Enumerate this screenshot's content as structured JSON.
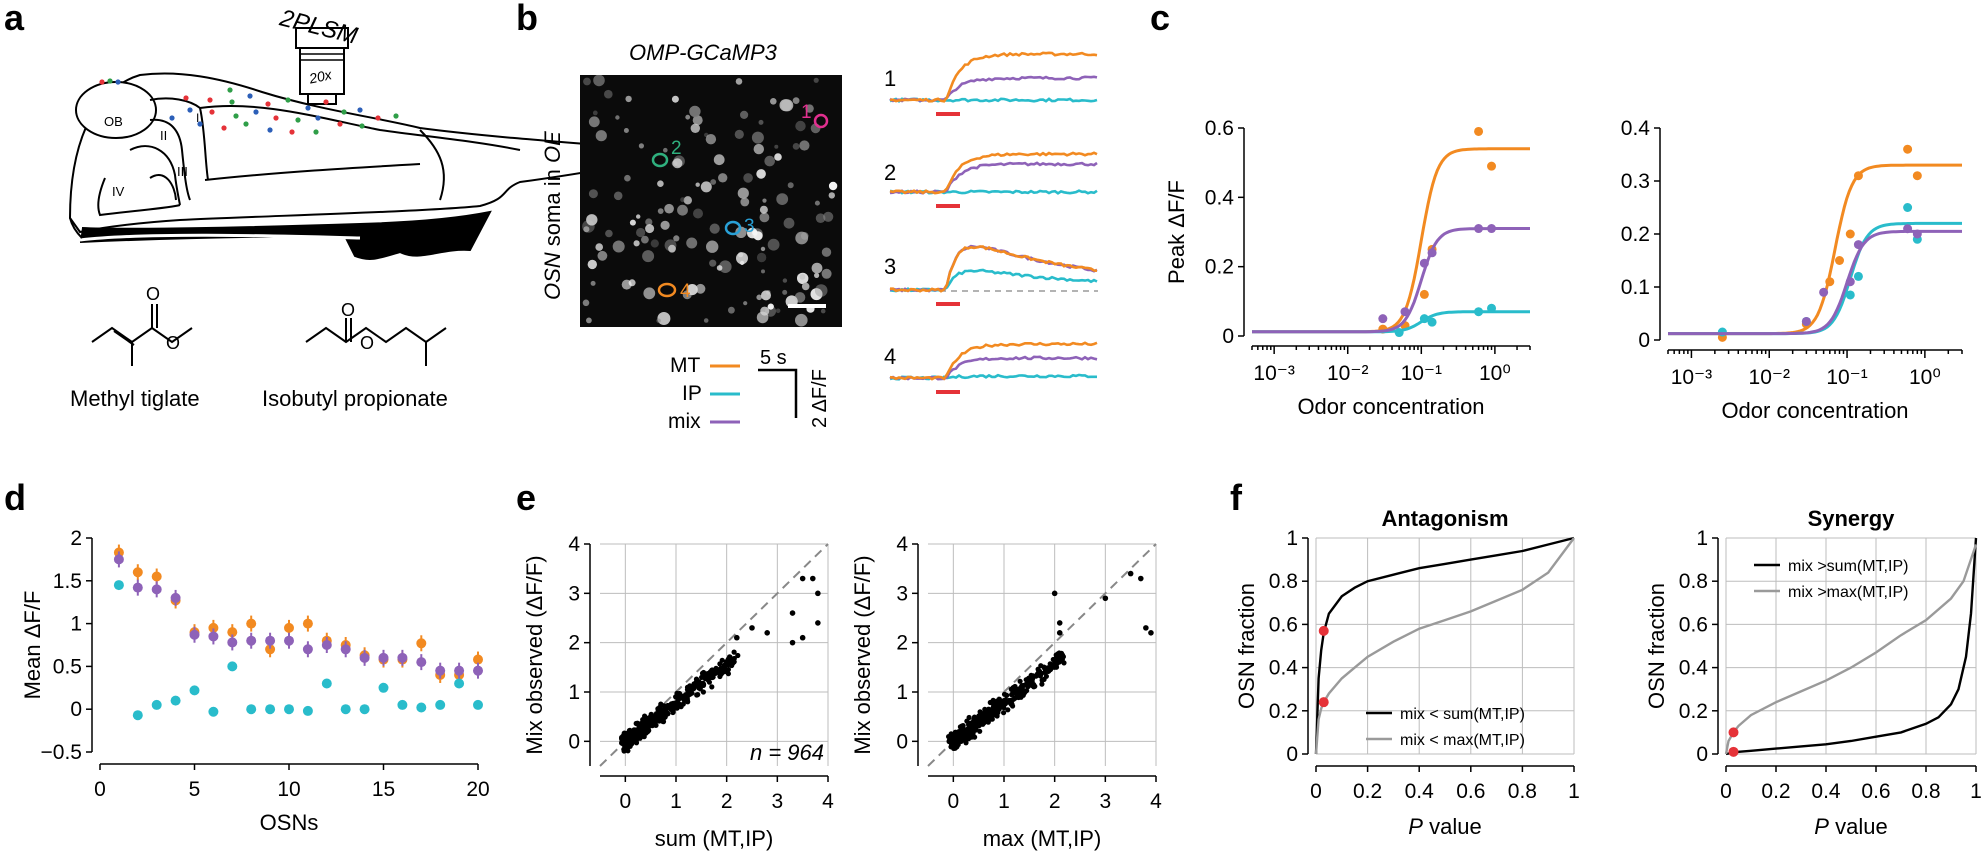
{
  "panel_labels": [
    "a",
    "b",
    "c",
    "d",
    "e",
    "f"
  ],
  "colors": {
    "MT": "#f28a21",
    "IP": "#29bccb",
    "mix": "#8e62b8",
    "marker": "#e53238"
  },
  "panel_a": {
    "microscope": "2PLSM",
    "objective": "20x",
    "regions": [
      "OB",
      "I",
      "II",
      "III",
      "IV"
    ],
    "chemicals": [
      "Methyl tiglate",
      "Isobutyl propionate"
    ]
  },
  "panel_b": {
    "image_title": "OMP-GCaMP3",
    "image_ylabel_prefix": "OSN",
    "image_ylabel_mid": " soma in ",
    "image_ylabel_suffix": "OE",
    "cells": [
      "1",
      "2",
      "3",
      "4"
    ],
    "legend": [
      "MT",
      "IP",
      "mix"
    ],
    "scale_time": "5 s",
    "scale_amp": "2 ΔF/F",
    "trace_labels": [
      "1",
      "2",
      "3",
      "4"
    ]
  },
  "chart_data": [
    {
      "type": "scatter",
      "panel": "c-left",
      "ylabel": "Peak ΔF/F",
      "xlabel": "Odor concentration",
      "xscale": "log",
      "xlim": [
        0.0005,
        3
      ],
      "ylim": [
        0,
        0.6
      ],
      "yticks": [
        "0",
        "0.2",
        "0.4",
        "0.6"
      ],
      "xticks": [
        "10⁻³",
        "10⁻²",
        "10⁻¹",
        "10⁰"
      ],
      "series": [
        {
          "name": "MT",
          "x": [
            0.03,
            0.06,
            0.11,
            0.14,
            0.6,
            0.9
          ],
          "y": [
            0.02,
            0.03,
            0.12,
            0.25,
            0.59,
            0.49
          ],
          "fit_top": 0.54,
          "fit_ec50": 0.1
        },
        {
          "name": "IP",
          "x": [
            0.05,
            0.11,
            0.14,
            0.6,
            0.9
          ],
          "y": [
            0.01,
            0.05,
            0.04,
            0.07,
            0.08
          ],
          "fit_top": 0.07,
          "fit_ec50": 0.1
        },
        {
          "name": "mix",
          "x": [
            0.03,
            0.06,
            0.11,
            0.14,
            0.6,
            0.9
          ],
          "y": [
            0.05,
            0.07,
            0.21,
            0.24,
            0.31,
            0.31
          ],
          "fit_top": 0.31,
          "fit_ec50": 0.1
        }
      ]
    },
    {
      "type": "scatter",
      "panel": "c-right",
      "ylabel": "",
      "xlabel": "Odor concentration",
      "xscale": "log",
      "xlim": [
        0.0005,
        3
      ],
      "ylim": [
        0,
        0.4
      ],
      "yticks": [
        "0",
        "0.1",
        "0.2",
        "0.3",
        "0.4"
      ],
      "xticks": [
        "10⁻³",
        "10⁻²",
        "10⁻¹",
        "10⁰"
      ],
      "series": [
        {
          "name": "MT",
          "x": [
            0.0025,
            0.03,
            0.06,
            0.08,
            0.11,
            0.14,
            0.6,
            0.8
          ],
          "y": [
            0.005,
            0.03,
            0.11,
            0.15,
            0.2,
            0.31,
            0.36,
            0.31
          ],
          "fit_top": 0.33,
          "fit_ec50": 0.07
        },
        {
          "name": "IP",
          "x": [
            0.0025,
            0.03,
            0.11,
            0.14,
            0.6,
            0.8
          ],
          "y": [
            0.015,
            0.035,
            0.085,
            0.12,
            0.25,
            0.19
          ],
          "fit_top": 0.22,
          "fit_ec50": 0.11
        },
        {
          "name": "mix",
          "x": [
            0.03,
            0.05,
            0.11,
            0.14,
            0.6,
            0.8
          ],
          "y": [
            0.035,
            0.09,
            0.11,
            0.18,
            0.21,
            0.2
          ],
          "fit_top": 0.205,
          "fit_ec50": 0.1
        }
      ]
    },
    {
      "type": "scatter",
      "panel": "d",
      "ylabel": "Mean ΔF/F",
      "xlabel": "OSNs",
      "xlim": [
        0,
        20
      ],
      "ylim": [
        -0.5,
        2
      ],
      "yticks": [
        "−0.5",
        "0",
        "0.5",
        "1",
        "1.5",
        "2"
      ],
      "xticks": [
        "0",
        "5",
        "10",
        "15",
        "20"
      ],
      "x": [
        1,
        2,
        3,
        4,
        5,
        6,
        7,
        8,
        9,
        10,
        11,
        12,
        13,
        14,
        15,
        16,
        17,
        18,
        19,
        20
      ],
      "series": [
        {
          "name": "MT",
          "values": [
            1.83,
            1.6,
            1.55,
            1.27,
            0.9,
            0.95,
            0.9,
            1.0,
            0.7,
            0.95,
            1.0,
            0.8,
            0.75,
            0.63,
            0.58,
            0.58,
            0.77,
            0.4,
            0.4,
            0.58
          ]
        },
        {
          "name": "IP",
          "values": [
            1.45,
            -0.07,
            0.05,
            0.1,
            0.22,
            -0.03,
            0.5,
            0.0,
            0.0,
            0.0,
            -0.02,
            0.3,
            0.0,
            0.0,
            0.25,
            0.05,
            0.02,
            0.05,
            0.3,
            0.05
          ]
        },
        {
          "name": "mix",
          "values": [
            1.75,
            1.42,
            1.4,
            1.3,
            0.87,
            0.85,
            0.78,
            0.8,
            0.8,
            0.8,
            0.7,
            0.75,
            0.7,
            0.6,
            0.6,
            0.6,
            0.55,
            0.45,
            0.45,
            0.45
          ]
        }
      ]
    },
    {
      "type": "scatter",
      "panel": "e-left",
      "ylabel": "Mix observed (ΔF/F)",
      "xlabel": "sum (MT,IP)",
      "annotation": "n = 964",
      "xlim": [
        -0.5,
        4
      ],
      "ylim": [
        -0.5,
        4
      ],
      "ticks": [
        "0",
        "1",
        "2",
        "3",
        "4"
      ],
      "sample_points": [
        [
          3.5,
          3.3
        ],
        [
          3.7,
          3.3
        ],
        [
          3.8,
          3.0
        ],
        [
          3.8,
          2.4
        ],
        [
          3.3,
          2.6
        ],
        [
          2.5,
          2.3
        ],
        [
          2.8,
          2.2
        ],
        [
          2.2,
          2.1
        ],
        [
          3.3,
          2.0
        ],
        [
          3.5,
          2.1
        ]
      ]
    },
    {
      "type": "scatter",
      "panel": "e-right",
      "ylabel": "Mix observed (ΔF/F)",
      "xlabel": "max (MT,IP)",
      "xlim": [
        -0.5,
        4
      ],
      "ylim": [
        -0.5,
        4
      ],
      "ticks": [
        "0",
        "1",
        "2",
        "3",
        "4"
      ],
      "sample_points": [
        [
          3.5,
          3.4
        ],
        [
          3.7,
          3.3
        ],
        [
          3.8,
          2.3
        ],
        [
          3.9,
          2.2
        ],
        [
          3.0,
          2.9
        ],
        [
          2.1,
          2.2
        ],
        [
          2.0,
          3.0
        ],
        [
          2.1,
          2.4
        ]
      ]
    },
    {
      "type": "line",
      "panel": "f-left",
      "title": "Antagonism",
      "xlabel_italic": "P",
      "xlabel_rest": " value",
      "ylabel": "OSN fraction",
      "xlim": [
        0,
        1
      ],
      "ylim": [
        0,
        1
      ],
      "ticks_x": [
        "0",
        "0.2",
        "0.4",
        "0.6",
        "0.8",
        "1"
      ],
      "ticks_y": [
        "0",
        "0.2",
        "0.4",
        "0.6",
        "0.8",
        "1"
      ],
      "legend": [
        {
          "label": "mix < sum(MT,IP)",
          "color": "#000000"
        },
        {
          "label": "mix < max(MT,IP)",
          "color": "#9a9a9a"
        }
      ],
      "series": [
        {
          "name": "mix < sum(MT,IP)",
          "x": [
            0,
            0.01,
            0.02,
            0.03,
            0.05,
            0.1,
            0.15,
            0.2,
            0.3,
            0.4,
            0.5,
            0.6,
            0.7,
            0.8,
            0.9,
            1.0
          ],
          "y": [
            0,
            0.35,
            0.48,
            0.56,
            0.65,
            0.73,
            0.77,
            0.8,
            0.83,
            0.86,
            0.88,
            0.9,
            0.92,
            0.94,
            0.97,
            1.0
          ]
        },
        {
          "name": "mix < max(MT,IP)",
          "x": [
            0,
            0.01,
            0.02,
            0.03,
            0.05,
            0.1,
            0.15,
            0.2,
            0.3,
            0.4,
            0.5,
            0.6,
            0.7,
            0.8,
            0.9,
            1.0
          ],
          "y": [
            0,
            0.16,
            0.21,
            0.24,
            0.28,
            0.35,
            0.4,
            0.45,
            0.52,
            0.58,
            0.62,
            0.66,
            0.71,
            0.76,
            0.84,
            1.0
          ]
        }
      ],
      "markers": [
        [
          0.03,
          0.57
        ],
        [
          0.03,
          0.24
        ]
      ]
    },
    {
      "type": "line",
      "panel": "f-right",
      "title": "Synergy",
      "xlabel_italic": "P",
      "xlabel_rest": " value",
      "ylabel": "OSN fraction",
      "xlim": [
        0,
        1
      ],
      "ylim": [
        0,
        1
      ],
      "ticks_x": [
        "0",
        "0.2",
        "0.4",
        "0.6",
        "0.8",
        "1"
      ],
      "ticks_y": [
        "0",
        "0.2",
        "0.4",
        "0.6",
        "0.8",
        "1"
      ],
      "legend": [
        {
          "label": "mix >sum(MT,IP)",
          "color": "#000000"
        },
        {
          "label": "mix >max(MT,IP)",
          "color": "#9a9a9a"
        }
      ],
      "series": [
        {
          "name": "mix >sum(MT,IP)",
          "x": [
            0,
            0.05,
            0.1,
            0.2,
            0.3,
            0.4,
            0.5,
            0.6,
            0.7,
            0.8,
            0.85,
            0.9,
            0.93,
            0.96,
            0.98,
            1.0
          ],
          "y": [
            0,
            0.01,
            0.015,
            0.025,
            0.035,
            0.045,
            0.06,
            0.08,
            0.1,
            0.14,
            0.17,
            0.23,
            0.3,
            0.45,
            0.65,
            1.0
          ]
        },
        {
          "name": "mix >max(MT,IP)",
          "x": [
            0,
            0.01,
            0.03,
            0.05,
            0.1,
            0.2,
            0.3,
            0.4,
            0.5,
            0.6,
            0.7,
            0.8,
            0.9,
            0.95,
            1.0
          ],
          "y": [
            0,
            0.06,
            0.1,
            0.13,
            0.18,
            0.24,
            0.29,
            0.34,
            0.4,
            0.47,
            0.55,
            0.62,
            0.72,
            0.8,
            0.97
          ]
        }
      ],
      "markers": [
        [
          0.03,
          0.1
        ],
        [
          0.03,
          0.01
        ]
      ]
    }
  ]
}
